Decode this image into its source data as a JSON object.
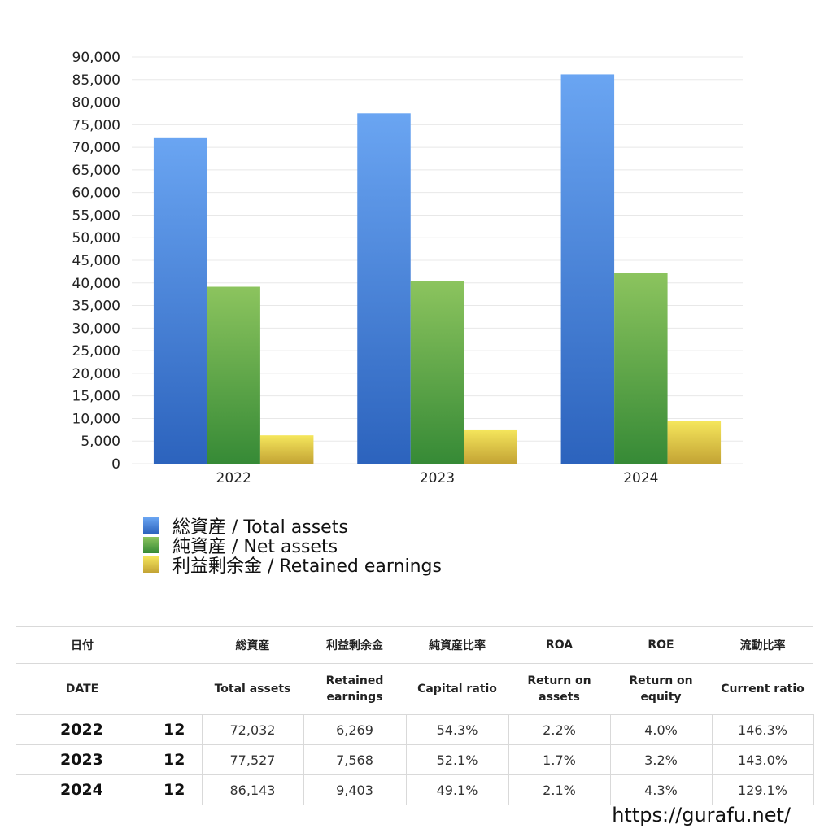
{
  "chart_data": {
    "type": "bar",
    "categories": [
      "2022",
      "2023",
      "2024"
    ],
    "series": [
      {
        "name": "総資産 / Total assets",
        "values": [
          72032,
          77527,
          86143
        ],
        "color_top": "#6aa5f2",
        "color_bottom": "#2c63bd"
      },
      {
        "name": "純資産 / Net assets",
        "values": [
          39150,
          40390,
          42300
        ],
        "color_top": "#8cc45e",
        "color_bottom": "#368a36"
      },
      {
        "name": "利益剰余金 / Retained earnings",
        "values": [
          6269,
          7568,
          9403
        ],
        "color_top": "#f5e65c",
        "color_bottom": "#c3a334"
      }
    ],
    "yticks": [
      "0",
      "5,000",
      "10,000",
      "15,000",
      "20,000",
      "25,000",
      "30,000",
      "35,000",
      "40,000",
      "45,000",
      "50,000",
      "55,000",
      "60,000",
      "65,000",
      "70,000",
      "75,000",
      "80,000",
      "85,000",
      "90,000"
    ],
    "ylim": [
      0,
      90000
    ],
    "grid": true,
    "legend_position": "bottom-left"
  },
  "table": {
    "headers_jp": [
      "日付",
      "",
      "総資産",
      "利益剰余金",
      "純資産比率",
      "ROA",
      "ROE",
      "流動比率"
    ],
    "headers_en": [
      "DATE",
      "",
      "Total assets",
      "Retained\nearnings",
      "Capital ratio",
      "Return on\nassets",
      "Return on\nequity",
      "Current ratio"
    ],
    "rows": [
      {
        "year": "2022",
        "month": "12",
        "total_assets": "72,032",
        "retained_earnings": "6,269",
        "capital_ratio": "54.3%",
        "roa": "2.2%",
        "roe": "4.0%",
        "current_ratio": "146.3%"
      },
      {
        "year": "2023",
        "month": "12",
        "total_assets": "77,527",
        "retained_earnings": "7,568",
        "capital_ratio": "52.1%",
        "roa": "1.7%",
        "roe": "3.2%",
        "current_ratio": "143.0%"
      },
      {
        "year": "2024",
        "month": "12",
        "total_assets": "86,143",
        "retained_earnings": "9,403",
        "capital_ratio": "49.1%",
        "roa": "2.1%",
        "roe": "4.3%",
        "current_ratio": "129.1%"
      }
    ]
  },
  "site_url": "https://gurafu.net/"
}
